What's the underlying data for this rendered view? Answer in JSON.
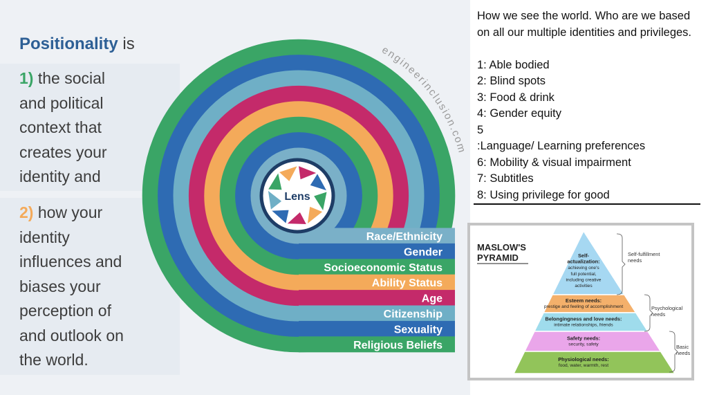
{
  "left": {
    "title_word": "Positionality",
    "title_rest": " is",
    "point1_num": "1)",
    "point1_text": " the social\nand political\ncontext that\ncreates your\nidentity and",
    "point2_num": "2)",
    "point2_text": " how your\nidentity\ninfluences and\nbiases your\nperception of\nand outlook on\nthe world."
  },
  "diagram": {
    "watermark": "engineerinclusion.com",
    "center_label": "Lens",
    "rings": [
      {
        "label": "Race/Ethnicity",
        "color": "#7ab0c8"
      },
      {
        "label": "Gender",
        "color": "#2e6bb3"
      },
      {
        "label": "Socioeconomic Status",
        "color": "#3aa566"
      },
      {
        "label": "Ability Status",
        "color": "#f4aa5a"
      },
      {
        "label": "Age",
        "color": "#c42a6a"
      },
      {
        "label": "Citizenship",
        "color": "#6fafc6"
      },
      {
        "label": "Sexuality",
        "color": "#2e6bb3"
      },
      {
        "label": "Religious Beliefs",
        "color": "#3aa566"
      }
    ]
  },
  "notes": {
    "intro": "How we see the world. Who are we based on all our multiple identities and privileges.",
    "items": [
      "1: Able bodied",
      "2: Blind spots",
      "3: Food & drink",
      "4: Gender equity",
      "5",
      ":Language/ Learning preferences",
      "6: Mobility & visual impairment",
      "7: Subtitles",
      "8: Using privilege for good"
    ]
  },
  "maslow": {
    "title_line1": "MASLOW'S",
    "title_line2": "PYRAMID",
    "levels": [
      {
        "title": "Self-",
        "title2": "actualization:",
        "desc": [
          "achieving one's",
          "full potential,",
          "including creative",
          "activities"
        ],
        "color": "#a6d8f2"
      },
      {
        "title": "Esteem needs:",
        "desc": [
          "prestige and feeling of accomplishment"
        ],
        "color": "#f4b06b"
      },
      {
        "title": "Belongingness and love needs:",
        "desc": [
          "intimate relationships, friends"
        ],
        "color": "#9fdcec"
      },
      {
        "title": "Safety needs:",
        "desc": [
          "security, safety"
        ],
        "color": "#eaa6ea"
      },
      {
        "title": "Physiological needs:",
        "desc": [
          "food, water, warmth, rest"
        ],
        "color": "#92c45a"
      }
    ],
    "groups": [
      {
        "line1": "Self-fulfillment",
        "line2": "needs"
      },
      {
        "line1": "Psychological",
        "line2": "needs"
      },
      {
        "line1": "Basic",
        "line2": "needs"
      }
    ]
  }
}
